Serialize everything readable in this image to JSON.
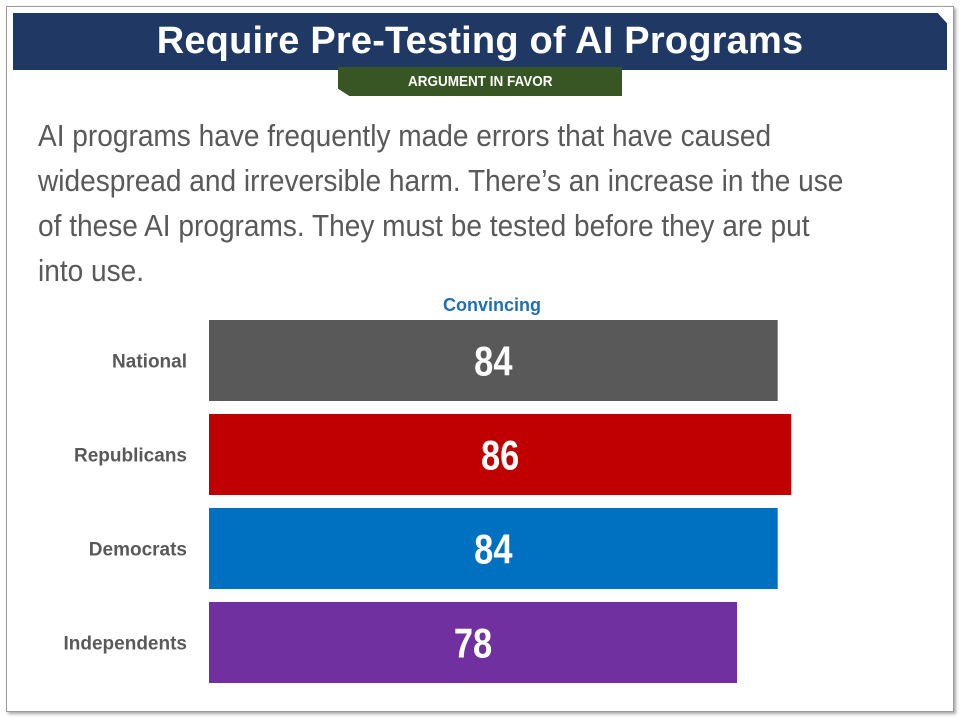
{
  "header": {
    "title": "Require Pre-Testing of AI Programs",
    "tag": "ARGUMENT IN FAVOR"
  },
  "body": {
    "text": "AI programs have frequently made errors that have caused widespread and irreversible harm. There’s an increase in the use of these AI programs. They must be tested before they are put into use."
  },
  "chart_data": {
    "type": "bar",
    "orientation": "horizontal",
    "column_header": "Convincing",
    "categories": [
      "National",
      "Republicans",
      "Democrats",
      "Independents"
    ],
    "values": [
      84,
      86,
      84,
      78
    ],
    "colors": [
      "#595959",
      "#c00000",
      "#0070c0",
      "#7030a0"
    ],
    "value_labels": [
      "84",
      "86",
      "84",
      "78"
    ],
    "grid": false,
    "legend": "none"
  }
}
